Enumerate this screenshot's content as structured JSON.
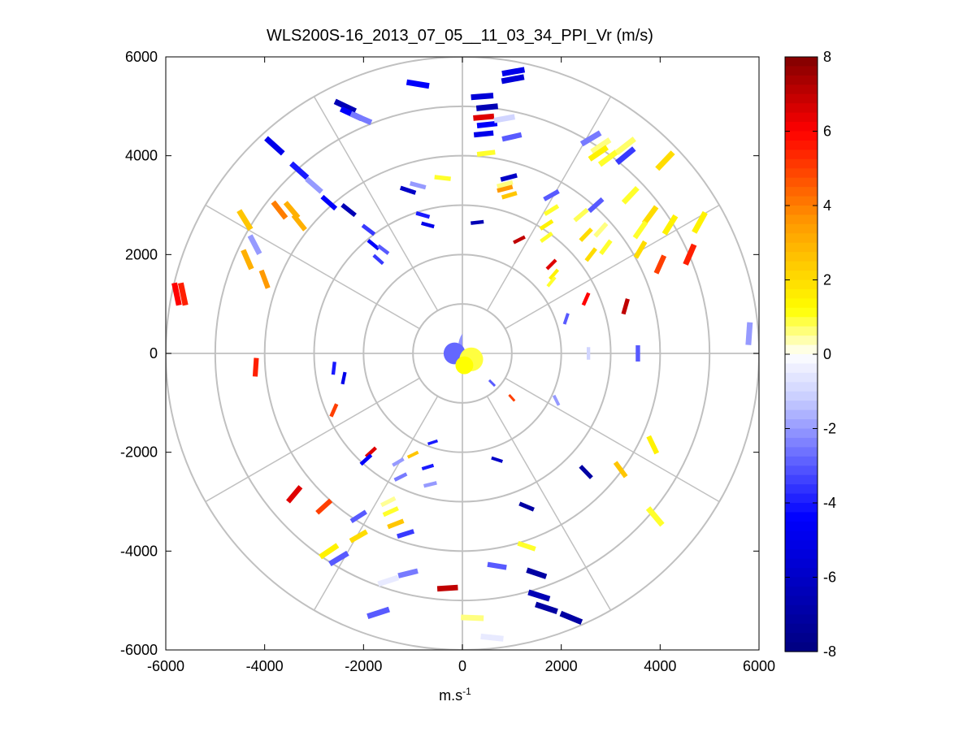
{
  "chart_data": {
    "type": "polar-scatter",
    "title": "WLS200S-16_2013_07_05__11_03_34_PPI_Vr (m/s)",
    "xlabel": "m.s",
    "xlabel_superscript": "-1",
    "ylabel": "",
    "xlim": [
      -6000,
      6000
    ],
    "ylim": [
      -6000,
      6000
    ],
    "xticks": [
      -6000,
      -4000,
      -2000,
      0,
      2000,
      4000,
      6000
    ],
    "yticks": [
      -6000,
      -4000,
      -2000,
      0,
      2000,
      4000,
      6000
    ],
    "xtick_labels": [
      "-6000",
      "-4000",
      "-2000",
      "0",
      "2000",
      "4000",
      "6000"
    ],
    "ytick_labels": [
      "-6000",
      "-4000",
      "-2000",
      "0",
      "2000",
      "4000",
      "6000"
    ],
    "range_rings": [
      1000,
      2000,
      3000,
      4000,
      5000,
      6000
    ],
    "spoke_angles_deg": [
      0,
      30,
      60,
      90,
      120,
      150,
      180,
      210,
      240,
      270,
      300,
      330
    ],
    "colorbar": {
      "min": -8,
      "max": 8,
      "ticks": [
        8,
        6,
        4,
        2,
        0,
        -2,
        -4,
        -6,
        -8
      ],
      "tick_labels": [
        "8",
        "6",
        "4",
        "2",
        "0",
        "-2",
        "-4",
        "-6",
        "-8"
      ]
    },
    "segments": [
      {
        "x": 400,
        "y": 5200,
        "v": -5.5
      },
      {
        "x": 500,
        "y": 4980,
        "v": -6.5
      },
      {
        "x": 430,
        "y": 4780,
        "v": 6.5
      },
      {
        "x": 500,
        "y": 4630,
        "v": -4.5
      },
      {
        "x": 430,
        "y": 4440,
        "v": -5
      },
      {
        "x": 480,
        "y": 4050,
        "v": 1
      },
      {
        "x": 1030,
        "y": 5700,
        "v": -5
      },
      {
        "x": 1020,
        "y": 5550,
        "v": -5.5
      },
      {
        "x": 850,
        "y": 4750,
        "v": -1
      },
      {
        "x": 1000,
        "y": 4380,
        "v": -3
      },
      {
        "x": 940,
        "y": 3560,
        "v": -6
      },
      {
        "x": 860,
        "y": 3420,
        "v": 0.6
      },
      {
        "x": 860,
        "y": 3330,
        "v": 3.5
      },
      {
        "x": -900,
        "y": 5450,
        "v": -4.5
      },
      {
        "x": -2370,
        "y": 5000,
        "v": -6.5
      },
      {
        "x": -2250,
        "y": 4850,
        "v": -4.5
      },
      {
        "x": -2050,
        "y": 4760,
        "v": -2.5
      },
      {
        "x": -3800,
        "y": 4200,
        "v": -5
      },
      {
        "x": -3300,
        "y": 3700,
        "v": -4
      },
      {
        "x": -3000,
        "y": 3400,
        "v": -2
      },
      {
        "x": -2700,
        "y": 3050,
        "v": -4.5
      },
      {
        "x": -3700,
        "y": 2900,
        "v": 4
      },
      {
        "x": -3450,
        "y": 2900,
        "v": 3
      },
      {
        "x": -3300,
        "y": 2650,
        "v": 3
      },
      {
        "x": -4400,
        "y": 2700,
        "v": 2.5
      },
      {
        "x": -4200,
        "y": 2200,
        "v": -2
      },
      {
        "x": -4350,
        "y": 1900,
        "v": 3
      },
      {
        "x": -4000,
        "y": 1500,
        "v": 3.5
      },
      {
        "x": -5780,
        "y": 1200,
        "v": 6
      },
      {
        "x": -5650,
        "y": 1200,
        "v": 5.5
      },
      {
        "x": -2300,
        "y": 2900,
        "v": -6.5
      },
      {
        "x": -1900,
        "y": 2500,
        "v": -3.5
      },
      {
        "x": -1800,
        "y": 2200,
        "v": -4.5
      },
      {
        "x": -1600,
        "y": 2100,
        "v": -3
      },
      {
        "x": -1700,
        "y": 1900,
        "v": -3.5
      },
      {
        "x": -1100,
        "y": 3300,
        "v": -6
      },
      {
        "x": -900,
        "y": 3400,
        "v": -2
      },
      {
        "x": -400,
        "y": 3550,
        "v": 1
      },
      {
        "x": -800,
        "y": 2800,
        "v": -4
      },
      {
        "x": -700,
        "y": 2600,
        "v": -5
      },
      {
        "x": 300,
        "y": 2650,
        "v": -6.5
      },
      {
        "x": 950,
        "y": 3200,
        "v": 2.5
      },
      {
        "x": 1800,
        "y": 3200,
        "v": -3
      },
      {
        "x": 1800,
        "y": 2900,
        "v": 1
      },
      {
        "x": 1700,
        "y": 2600,
        "v": 1.5
      },
      {
        "x": 1700,
        "y": 2350,
        "v": 1
      },
      {
        "x": 1150,
        "y": 2300,
        "v": 7
      },
      {
        "x": 2800,
        "y": 4200,
        "v": 0.6
      },
      {
        "x": 2600,
        "y": 4350,
        "v": -2.5
      },
      {
        "x": 2750,
        "y": 4050,
        "v": 1.5
      },
      {
        "x": 2950,
        "y": 3950,
        "v": 1
      },
      {
        "x": 3300,
        "y": 4200,
        "v": 0.7
      },
      {
        "x": 3300,
        "y": 4000,
        "v": -3.5
      },
      {
        "x": 4100,
        "y": 3900,
        "v": 2
      },
      {
        "x": 3400,
        "y": 3200,
        "v": 1
      },
      {
        "x": 2700,
        "y": 3000,
        "v": -3
      },
      {
        "x": 2400,
        "y": 2800,
        "v": 0.8
      },
      {
        "x": 2500,
        "y": 2400,
        "v": 2
      },
      {
        "x": 2800,
        "y": 2500,
        "v": 0.6
      },
      {
        "x": 2900,
        "y": 2150,
        "v": 1
      },
      {
        "x": 2600,
        "y": 2000,
        "v": 2
      },
      {
        "x": 3800,
        "y": 2800,
        "v": 2
      },
      {
        "x": 3600,
        "y": 2500,
        "v": 1
      },
      {
        "x": 4200,
        "y": 2600,
        "v": 1.5
      },
      {
        "x": 4800,
        "y": 2650,
        "v": 1.5
      },
      {
        "x": 4600,
        "y": 2000,
        "v": 5.5
      },
      {
        "x": 4000,
        "y": 1800,
        "v": 5
      },
      {
        "x": 3600,
        "y": 2100,
        "v": 2
      },
      {
        "x": 1800,
        "y": 1800,
        "v": 6.5
      },
      {
        "x": 1850,
        "y": 1600,
        "v": 1.5
      },
      {
        "x": 1800,
        "y": 1450,
        "v": 1
      },
      {
        "x": 2500,
        "y": 1100,
        "v": 6
      },
      {
        "x": 3300,
        "y": 950,
        "v": 7
      },
      {
        "x": 2100,
        "y": 700,
        "v": -3
      },
      {
        "x": 5800,
        "y": 400,
        "v": -2
      },
      {
        "x": 3550,
        "y": 0,
        "v": -3
      },
      {
        "x": 2550,
        "y": 0,
        "v": -1
      },
      {
        "x": -4180,
        "y": -280,
        "v": 5.5
      },
      {
        "x": -2400,
        "y": -500,
        "v": -5
      },
      {
        "x": -2600,
        "y": -300,
        "v": -4
      },
      {
        "x": -2600,
        "y": -1150,
        "v": 5
      },
      {
        "x": -1850,
        "y": -2000,
        "v": 6.5
      },
      {
        "x": -1950,
        "y": -2150,
        "v": -4.5
      },
      {
        "x": -1300,
        "y": -2200,
        "v": -2
      },
      {
        "x": -1000,
        "y": -2050,
        "v": 2.5
      },
      {
        "x": -600,
        "y": -1800,
        "v": -4
      },
      {
        "x": -700,
        "y": -2300,
        "v": -4
      },
      {
        "x": -650,
        "y": -2650,
        "v": -2
      },
      {
        "x": -1250,
        "y": -2500,
        "v": -2.5
      },
      {
        "x": -3400,
        "y": -2850,
        "v": 6.5
      },
      {
        "x": -2800,
        "y": -3100,
        "v": 5
      },
      {
        "x": -2100,
        "y": -3300,
        "v": -3
      },
      {
        "x": -1500,
        "y": -3000,
        "v": 0.5
      },
      {
        "x": -1450,
        "y": -3200,
        "v": 1
      },
      {
        "x": -1350,
        "y": -3450,
        "v": 2.5
      },
      {
        "x": -1150,
        "y": -3650,
        "v": -3.5
      },
      {
        "x": -2100,
        "y": -3700,
        "v": 2
      },
      {
        "x": -2700,
        "y": -4000,
        "v": 1.5
      },
      {
        "x": -2500,
        "y": -4150,
        "v": -3
      },
      {
        "x": -1500,
        "y": -4600,
        "v": -0.5
      },
      {
        "x": -1100,
        "y": -4450,
        "v": -2.5
      },
      {
        "x": -300,
        "y": -4750,
        "v": 7
      },
      {
        "x": -1700,
        "y": -5250,
        "v": -3
      },
      {
        "x": 200,
        "y": -5350,
        "v": 0.6
      },
      {
        "x": 600,
        "y": -5750,
        "v": -0.5
      },
      {
        "x": 700,
        "y": -4300,
        "v": -3
      },
      {
        "x": 1300,
        "y": -3900,
        "v": 1
      },
      {
        "x": 1300,
        "y": -3100,
        "v": -7
      },
      {
        "x": 1500,
        "y": -4450,
        "v": -7
      },
      {
        "x": 1550,
        "y": -4900,
        "v": -6.5
      },
      {
        "x": 1700,
        "y": -5150,
        "v": -7
      },
      {
        "x": 2200,
        "y": -5350,
        "v": -7
      },
      {
        "x": 700,
        "y": -2150,
        "v": -6
      },
      {
        "x": 2500,
        "y": -2400,
        "v": -7
      },
      {
        "x": 3200,
        "y": -2350,
        "v": 2.5
      },
      {
        "x": 3850,
        "y": -1850,
        "v": 1.5
      },
      {
        "x": 3900,
        "y": -3300,
        "v": 1
      },
      {
        "x": 1900,
        "y": -950,
        "v": -2
      },
      {
        "x": 1000,
        "y": -900,
        "v": 5
      },
      {
        "x": 600,
        "y": -600,
        "v": -3
      }
    ]
  }
}
